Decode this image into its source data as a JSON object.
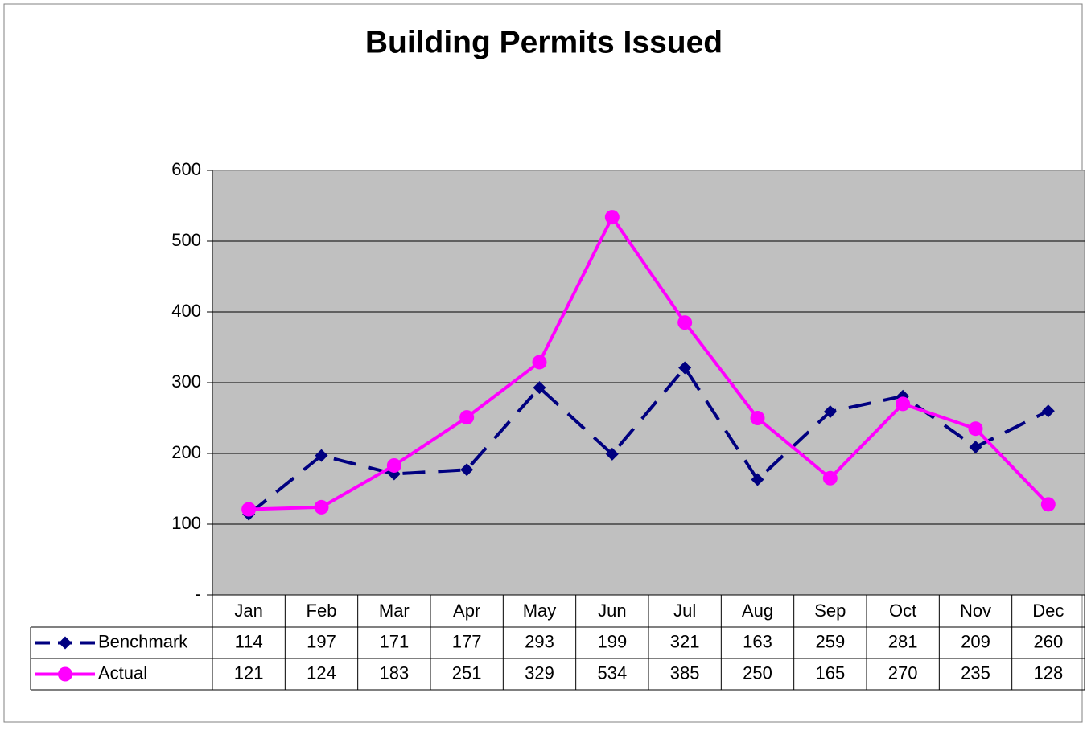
{
  "chart_data": {
    "type": "line",
    "title": "Building Permits Issued",
    "categories": [
      "Jan",
      "Feb",
      "Mar",
      "Apr",
      "May",
      "Jun",
      "Jul",
      "Aug",
      "Sep",
      "Oct",
      "Nov",
      "Dec"
    ],
    "series": [
      {
        "name": "Benchmark",
        "color": "#000080",
        "values": [
          114,
          197,
          171,
          177,
          293,
          199,
          321,
          163,
          259,
          281,
          209,
          260
        ]
      },
      {
        "name": "Actual",
        "color": "#ff00ff",
        "values": [
          121,
          124,
          183,
          251,
          329,
          534,
          385,
          250,
          165,
          270,
          235,
          128
        ]
      }
    ],
    "ylim": [
      0,
      600
    ],
    "yticks": [
      {
        "value": 0,
        "label": "-"
      },
      100,
      200,
      300,
      400,
      500,
      600
    ],
    "grid": true
  }
}
